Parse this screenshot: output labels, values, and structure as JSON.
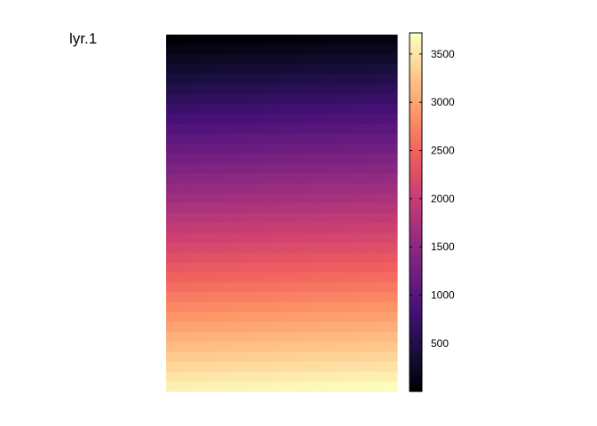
{
  "chart_data": {
    "type": "heatmap",
    "title": "lyr.1",
    "colormap": "magma",
    "color_stops": [
      "#000004",
      "#180f3e",
      "#451077",
      "#721f81",
      "#9e2f7f",
      "#cd4071",
      "#f1605d",
      "#fd9567",
      "#fec98d",
      "#fcfdbf"
    ],
    "nrows": 36,
    "ncols": 24,
    "value_range": [
      1,
      3720
    ],
    "fill_direction": "top-to-bottom",
    "colorbar": {
      "ticks": [
        500,
        1000,
        1500,
        2000,
        2500,
        3000,
        3500
      ],
      "tick_labels": [
        "500",
        "1000",
        "1500",
        "2000",
        "2500",
        "3000",
        "3500"
      ],
      "range": [
        1,
        3720
      ]
    }
  }
}
